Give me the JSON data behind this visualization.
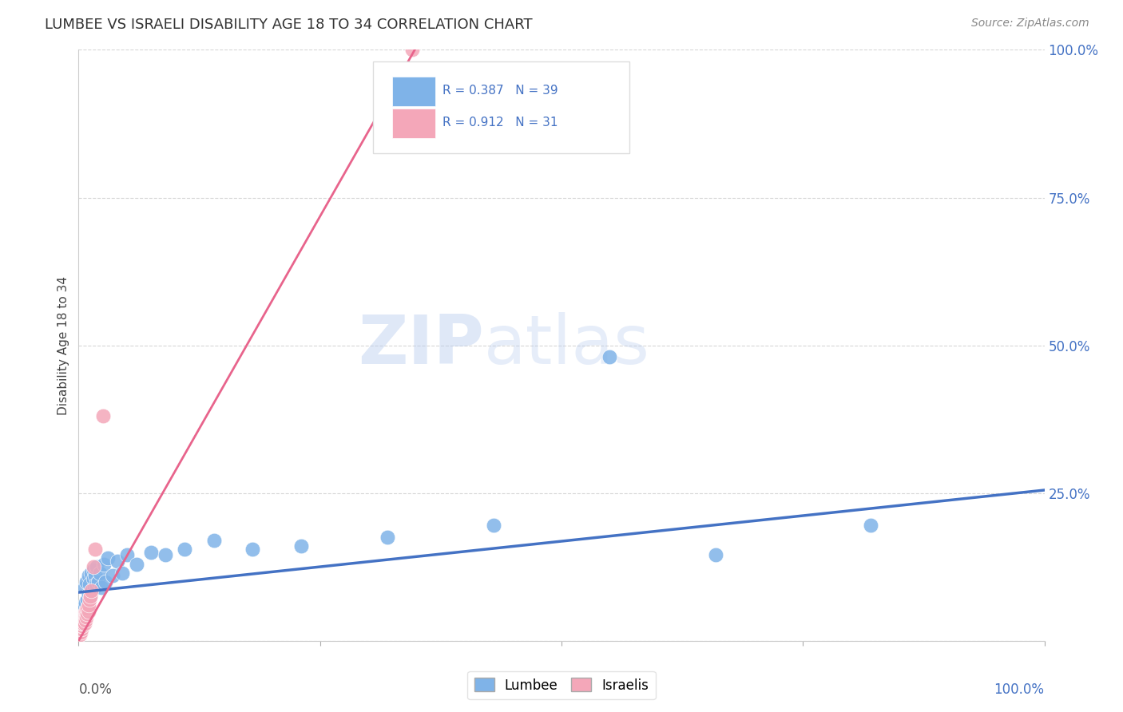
{
  "title": "LUMBEE VS ISRAELI DISABILITY AGE 18 TO 34 CORRELATION CHART",
  "source": "Source: ZipAtlas.com",
  "ylabel": "Disability Age 18 to 34",
  "legend_lumbee": "Lumbee",
  "legend_israelis": "Israelis",
  "r_lumbee": "R = 0.387",
  "n_lumbee": "N = 39",
  "r_israelis": "R = 0.912",
  "n_israelis": "N = 31",
  "lumbee_color": "#7fb3e8",
  "israeli_color": "#f4a7b9",
  "lumbee_line_color": "#4472c4",
  "israeli_line_color": "#e8648c",
  "background_color": "#ffffff",
  "watermark_zip": "ZIP",
  "watermark_atlas": "atlas",
  "lumbee_x": [
    0.004,
    0.006,
    0.007,
    0.008,
    0.009,
    0.01,
    0.01,
    0.011,
    0.012,
    0.013,
    0.014,
    0.015,
    0.015,
    0.016,
    0.017,
    0.018,
    0.019,
    0.02,
    0.022,
    0.024,
    0.026,
    0.028,
    0.03,
    0.035,
    0.04,
    0.045,
    0.05,
    0.06,
    0.075,
    0.09,
    0.11,
    0.14,
    0.18,
    0.23,
    0.32,
    0.43,
    0.55,
    0.66,
    0.82
  ],
  "lumbee_y": [
    0.055,
    0.09,
    0.065,
    0.1,
    0.07,
    0.11,
    0.08,
    0.095,
    0.075,
    0.115,
    0.085,
    0.105,
    0.12,
    0.09,
    0.11,
    0.095,
    0.125,
    0.1,
    0.115,
    0.09,
    0.13,
    0.1,
    0.14,
    0.11,
    0.135,
    0.115,
    0.145,
    0.13,
    0.15,
    0.145,
    0.155,
    0.17,
    0.155,
    0.16,
    0.175,
    0.195,
    0.48,
    0.145,
    0.195
  ],
  "israeli_x": [
    0.001,
    0.002,
    0.002,
    0.003,
    0.003,
    0.003,
    0.004,
    0.004,
    0.004,
    0.005,
    0.005,
    0.005,
    0.006,
    0.006,
    0.006,
    0.007,
    0.007,
    0.007,
    0.008,
    0.008,
    0.009,
    0.009,
    0.01,
    0.01,
    0.011,
    0.012,
    0.013,
    0.015,
    0.017,
    0.025,
    0.345
  ],
  "israeli_y": [
    0.01,
    0.015,
    0.02,
    0.02,
    0.025,
    0.03,
    0.025,
    0.03,
    0.035,
    0.03,
    0.035,
    0.04,
    0.03,
    0.04,
    0.045,
    0.035,
    0.045,
    0.05,
    0.04,
    0.05,
    0.045,
    0.055,
    0.05,
    0.06,
    0.07,
    0.075,
    0.085,
    0.125,
    0.155,
    0.38,
    1.0
  ],
  "lumbee_line_x": [
    0.0,
    1.0
  ],
  "lumbee_line_y": [
    0.082,
    0.255
  ],
  "israeli_line_x": [
    0.0,
    0.355
  ],
  "israeli_line_y": [
    0.0,
    1.02
  ],
  "xlim": [
    0,
    1.0
  ],
  "ylim": [
    0,
    1.0
  ],
  "right_yticks": [
    0.25,
    0.5,
    0.75,
    1.0
  ],
  "right_ytick_labels": [
    "25.0%",
    "50.0%",
    "75.0%",
    "100.0%"
  ],
  "right_ytick_color": "#4472c4"
}
